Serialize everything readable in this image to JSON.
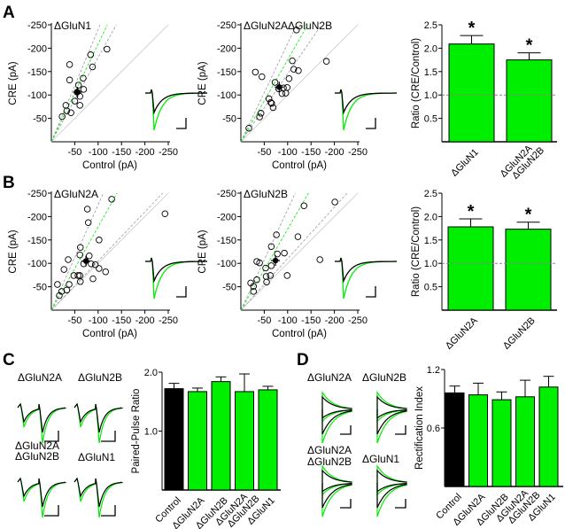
{
  "colors": {
    "green": "#00ee00",
    "black": "#000000",
    "grey": "#aaaaaa",
    "ci": "#9a9aaa"
  },
  "panels": {
    "a": "A",
    "b": "B",
    "c": "C",
    "d": "D"
  },
  "chart_data": [
    {
      "id": "A1",
      "type": "scatter",
      "title": "ΔGluN1",
      "xlabel": "Control (pA)",
      "ylabel": "CRE (pA)",
      "xticks": [
        "-50",
        "-100",
        "-150",
        "-200",
        "-250"
      ],
      "yticks": [
        "-50",
        "-100",
        "-150",
        "-200",
        "-250"
      ],
      "xlim": [
        0,
        -250
      ],
      "ylim": [
        0,
        -250
      ],
      "fit_slope": 2.09,
      "ci_slopes": [
        1.8,
        2.4
      ],
      "mean": [
        -56,
        -106
      ],
      "points": [
        [
          -23,
          -54
        ],
        [
          -31,
          -78
        ],
        [
          -33,
          -66
        ],
        [
          -42,
          -62
        ],
        [
          -39,
          -165
        ],
        [
          -39,
          -132
        ],
        [
          -50,
          -87
        ],
        [
          -58,
          -121
        ],
        [
          -61,
          -97
        ],
        [
          -61,
          -78
        ],
        [
          -68,
          -136
        ],
        [
          -69,
          -112
        ],
        [
          -84,
          -186
        ],
        [
          -88,
          -160
        ],
        [
          -119,
          -198
        ],
        [
          -55,
          -106
        ]
      ]
    },
    {
      "id": "A2",
      "type": "scatter",
      "title": "ΔGluN2AΔGluN2B",
      "xlabel": "Control (pA)",
      "ylabel": "CRE (pA)",
      "xticks": [
        "-50",
        "-100",
        "-150",
        "-200",
        "-250"
      ],
      "yticks": [
        "-50",
        "-100",
        "-150",
        "-200",
        "-250"
      ],
      "xlim": [
        0,
        -250
      ],
      "ylim": [
        0,
        -250
      ],
      "fit_slope": 1.75,
      "ci_slopes": [
        1.45,
        2.1
      ],
      "mean": [
        -82,
        -117
      ],
      "points": [
        [
          -17,
          -29
        ],
        [
          -40,
          -53
        ],
        [
          -43,
          -61
        ],
        [
          -60,
          -92
        ],
        [
          -64,
          -84
        ],
        [
          -66,
          -82
        ],
        [
          -69,
          -73
        ],
        [
          -73,
          -127
        ],
        [
          -45,
          -139
        ],
        [
          -31,
          -149
        ],
        [
          -88,
          -103
        ],
        [
          -96,
          -104
        ],
        [
          -99,
          -116
        ],
        [
          -103,
          -135
        ],
        [
          -110,
          -173
        ],
        [
          -113,
          -155
        ],
        [
          -123,
          -152
        ],
        [
          -119,
          -239
        ],
        [
          -183,
          -172
        ],
        [
          -81,
          -113
        ],
        [
          -91,
          -115
        ]
      ]
    },
    {
      "id": "A3",
      "type": "bar",
      "ylabel": "Ratio (CRE/Control)",
      "categories": [
        [
          "ΔGluN1"
        ],
        [
          "ΔGluN2A",
          "ΔGluN2B"
        ]
      ],
      "values": [
        2.09,
        1.75
      ],
      "errors": [
        0.18,
        0.15
      ],
      "significance": [
        "*",
        "*"
      ],
      "yticks": [
        "0.5",
        "1.0",
        "1.5",
        "2.0",
        "2.5"
      ],
      "ylim": [
        0,
        2.5
      ],
      "reference_line": 1.0
    },
    {
      "id": "B1",
      "type": "scatter",
      "title": "ΔGluN2A",
      "xlabel": "Control (pA)",
      "ylabel": "CRE (pA)",
      "xticks": [
        "-50",
        "-100",
        "-150",
        "-200",
        "-250"
      ],
      "yticks": [
        "-50",
        "-100",
        "-150",
        "-200",
        "-250"
      ],
      "xlim": [
        0,
        -250
      ],
      "ylim": [
        0,
        -250
      ],
      "fit_slope": 1.78,
      "ci_slopes": [
        1.05,
        2.25
      ],
      "mean": [
        -74,
        -105
      ],
      "points": [
        [
          -13,
          -55
        ],
        [
          -17,
          -31
        ],
        [
          -22,
          -40
        ],
        [
          -33,
          -43
        ],
        [
          -38,
          -55
        ],
        [
          -27,
          -87
        ],
        [
          -36,
          -108
        ],
        [
          -48,
          -74
        ],
        [
          -57,
          -74
        ],
        [
          -61,
          -74
        ],
        [
          -62,
          -61
        ],
        [
          -61,
          -118
        ],
        [
          -62,
          -134
        ],
        [
          -69,
          -99
        ],
        [
          -77,
          -216
        ],
        [
          -79,
          -187
        ],
        [
          -81,
          -116
        ],
        [
          -85,
          -99
        ],
        [
          -89,
          -67
        ],
        [
          -94,
          -97
        ],
        [
          -102,
          -89
        ],
        [
          -102,
          -150
        ],
        [
          -116,
          -82
        ],
        [
          -129,
          -237
        ],
        [
          -243,
          -206
        ]
      ]
    },
    {
      "id": "B2",
      "type": "scatter",
      "title": "ΔGluN2B",
      "xlabel": "Control (pA)",
      "ylabel": "CRE (pA)",
      "xticks": [
        "-50",
        "-100",
        "-150",
        "-200",
        "-250"
      ],
      "yticks": [
        "-50",
        "-100",
        "-150",
        "-200",
        "-250"
      ],
      "xlim": [
        0,
        -250
      ],
      "ylim": [
        0,
        -250
      ],
      "fit_slope": 1.73,
      "ci_slopes": [
        1.1,
        2.15
      ],
      "mean": [
        -74,
        -106
      ],
      "points": [
        [
          -21,
          -58
        ],
        [
          -27,
          -51
        ],
        [
          -27,
          -40
        ],
        [
          -34,
          -65
        ],
        [
          -34,
          -104
        ],
        [
          -40,
          -101
        ],
        [
          -53,
          -90
        ],
        [
          -54,
          -72
        ],
        [
          -55,
          -60
        ],
        [
          -63,
          -74
        ],
        [
          -65,
          -95
        ],
        [
          -65,
          -136
        ],
        [
          -76,
          -161
        ],
        [
          -78,
          -120
        ],
        [
          -93,
          -122
        ],
        [
          -99,
          -74
        ],
        [
          -122,
          -157
        ],
        [
          -135,
          -223
        ],
        [
          -169,
          -108
        ],
        [
          -201,
          -231
        ]
      ]
    },
    {
      "id": "B3",
      "type": "bar",
      "ylabel": "Ratio (CRE/Control)",
      "categories": [
        [
          "ΔGluN2A"
        ],
        [
          "ΔGluN2B"
        ]
      ],
      "values": [
        1.78,
        1.73
      ],
      "errors": [
        0.17,
        0.15
      ],
      "significance": [
        "*",
        "*"
      ],
      "yticks": [
        "0.5",
        "1.0",
        "1.5",
        "2.0",
        "2.5"
      ],
      "ylim": [
        0,
        2.5
      ],
      "reference_line": 1.0
    },
    {
      "id": "C",
      "type": "bar",
      "ylabel": "Paired-Pulse Ratio",
      "categories": [
        [
          "Control"
        ],
        [
          "ΔGluN2A"
        ],
        [
          "ΔGluN2B"
        ],
        [
          "ΔGluN2A",
          "ΔGluN2B"
        ],
        [
          "ΔGluN1"
        ]
      ],
      "values": [
        1.72,
        1.67,
        1.84,
        1.67,
        1.7
      ],
      "errors": [
        0.09,
        0.06,
        0.08,
        0.3,
        0.06
      ],
      "yticks": [
        "1.0",
        "2.0"
      ],
      "ylim": [
        0,
        2.0
      ]
    },
    {
      "id": "D",
      "type": "bar",
      "ylabel": "Rectification Index",
      "categories": [
        [
          "Control"
        ],
        [
          "ΔGluN2A"
        ],
        [
          "ΔGluN2B"
        ],
        [
          "ΔGluN2A",
          "ΔGluN2B"
        ],
        [
          "ΔGluN1"
        ]
      ],
      "values": [
        0.96,
        0.94,
        0.89,
        0.92,
        1.02
      ],
      "errors": [
        0.07,
        0.12,
        0.08,
        0.17,
        0.11
      ],
      "yticks": [
        "0.6",
        "1.2"
      ],
      "ylim": [
        0,
        1.2
      ]
    }
  ],
  "trace_labels": {
    "c": [
      [
        "ΔGluN2A"
      ],
      [
        "ΔGluN2B"
      ],
      [
        "ΔGluN2A",
        "ΔGluN2B"
      ],
      [
        "ΔGluN1"
      ]
    ],
    "d": [
      [
        "ΔGluN2A"
      ],
      [
        "ΔGluN2B"
      ],
      [
        "ΔGluN2A",
        "ΔGluN2B"
      ],
      [
        "ΔGluN1"
      ]
    ]
  }
}
